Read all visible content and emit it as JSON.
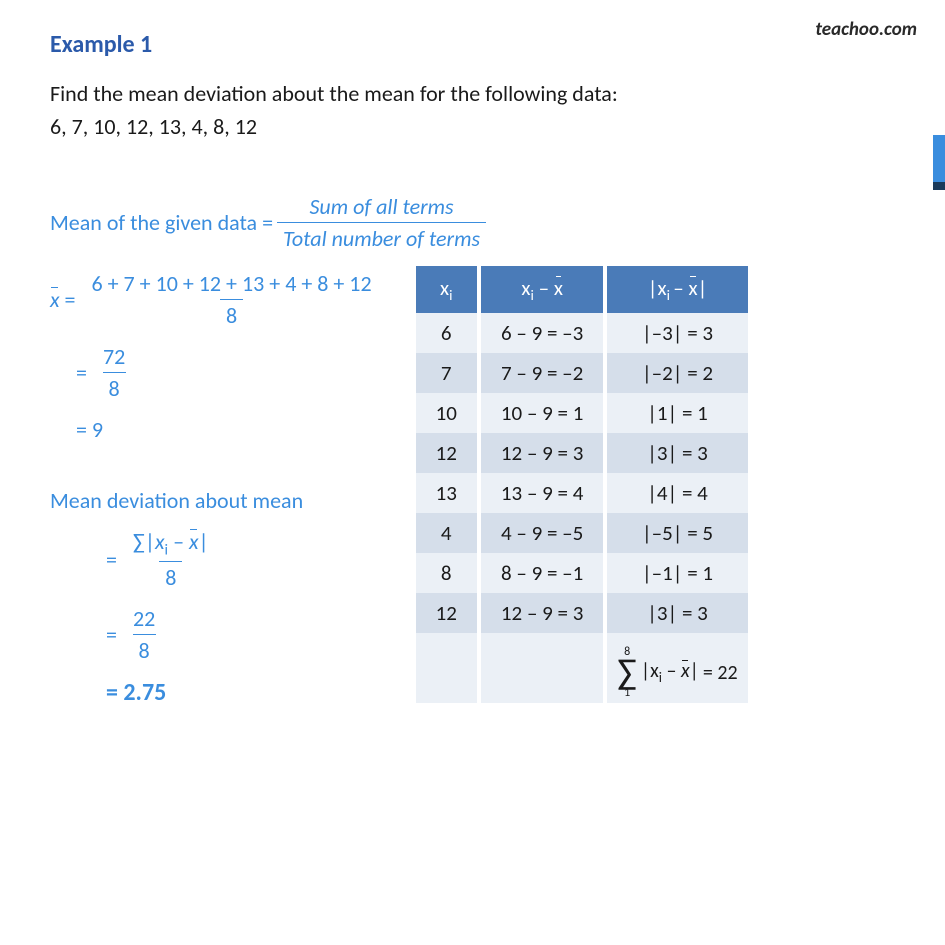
{
  "watermark": "teachoo.com",
  "title": "Example 1",
  "problem_line1": "Find the mean deviation about the mean for the following data:",
  "problem_line2": "6, 7, 10, 12, 13, 4, 8, 12",
  "mean_label": "Mean of the given data = ",
  "mean_frac_num": "Sum of all terms",
  "mean_frac_den": "Total number of terms",
  "xbar_symbol": "x",
  "step1_num": "6 + 7 + 10 + 12 + 13 + 4 + 8 + 12",
  "step1_den": "8",
  "step2_num": "72",
  "step2_den": "8",
  "step3": "= 9",
  "md_label": "Mean deviation about mean",
  "md1_num_sigma": "∑",
  "md1_num_expr_xi": "x",
  "md1_num_expr_xbar": "x",
  "md1_den": "8",
  "md2_num": "22",
  "md2_den": "8",
  "md_ans": "= 2.75",
  "table": {
    "header_bg": "#4a7bb8",
    "header_fg": "#ffffff",
    "row_light_bg": "#ebf0f6",
    "row_dark_bg": "#d5deea",
    "col1_header": "x",
    "col2_header_xi": "x",
    "col2_header_xbar": "x",
    "col3_header_xi": "x",
    "col3_header_xbar": "x",
    "rows": [
      {
        "xi": "6",
        "diff": "6 – 9 = –3",
        "abs": "|–3| = 3",
        "shade": "light"
      },
      {
        "xi": "7",
        "diff": "7 – 9 = –2",
        "abs": "|–2| = 2",
        "shade": "dark"
      },
      {
        "xi": "10",
        "diff": "10 – 9 = 1",
        "abs": "|1| = 1",
        "shade": "light"
      },
      {
        "xi": "12",
        "diff": "12 – 9 = 3",
        "abs": "|3| = 3",
        "shade": "dark"
      },
      {
        "xi": "13",
        "diff": "13 – 9 = 4",
        "abs": "|4| = 4",
        "shade": "light"
      },
      {
        "xi": "4",
        "diff": "4 – 9 = –5",
        "abs": "|–5| = 5",
        "shade": "dark"
      },
      {
        "xi": "8",
        "diff": "8 – 9 = –1",
        "abs": "|–1| = 1",
        "shade": "light"
      },
      {
        "xi": "12",
        "diff": "12 – 9  = 3",
        "abs": "|3| = 3",
        "shade": "dark"
      }
    ],
    "sum_upper": "8",
    "sum_lower": "1",
    "sum_expr_xi": "x",
    "sum_expr_xbar": "x",
    "sum_result": "= 22"
  },
  "colors": {
    "title_color": "#2b5aaa",
    "accent_blue": "#3a8dde",
    "text_color": "#1a1a1a",
    "bar_blue": "#3a8dde",
    "bar_dark": "#1a3a5a"
  },
  "fonts": {
    "body_family": "Segoe UI, Calibri, sans-serif",
    "title_size_pt": 18,
    "body_size_pt": 16,
    "table_size_pt": 15
  }
}
